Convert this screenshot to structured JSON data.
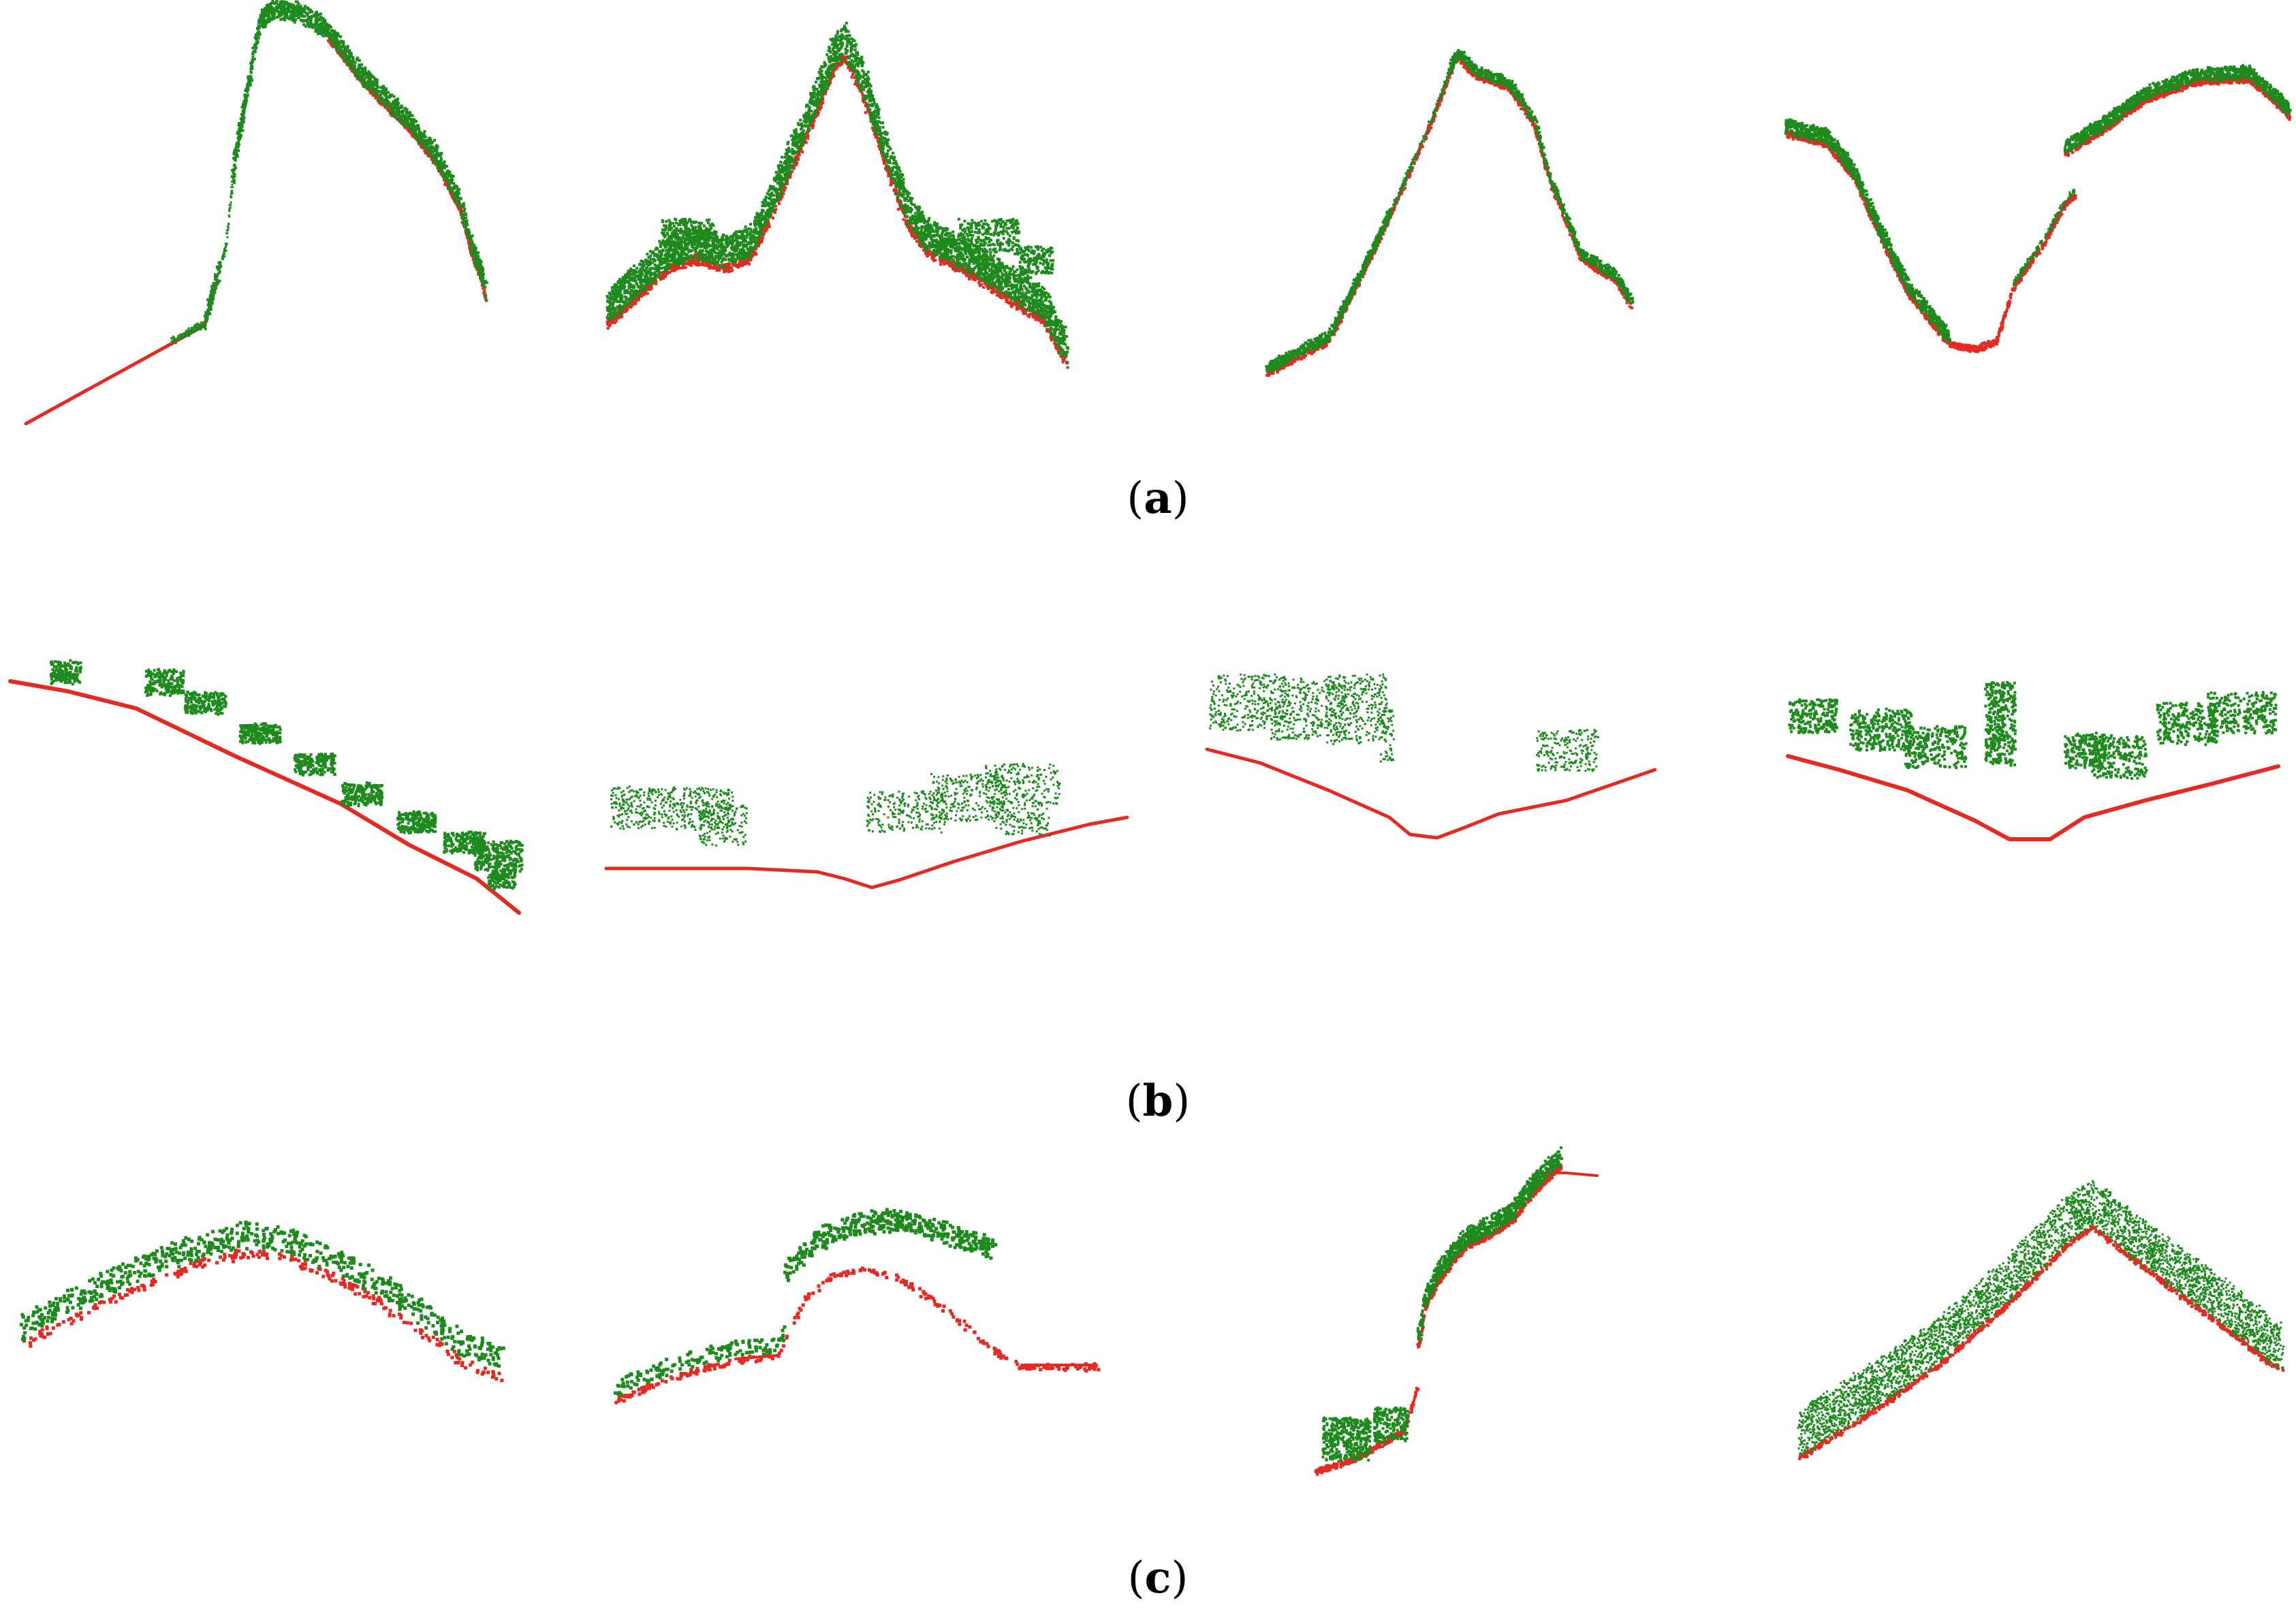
{
  "colors": {
    "ground": "#e52a24",
    "vegetation": "#1e8a1e",
    "background": "#ffffff"
  },
  "rows": [
    {
      "id": "a",
      "caption": {
        "open": "(",
        "letter": "a",
        "close": ")"
      }
    },
    {
      "id": "b",
      "caption": {
        "open": "(",
        "letter": "b",
        "close": ")"
      }
    },
    {
      "id": "c",
      "caption": {
        "open": "(",
        "letter": "c",
        "close": ")"
      }
    }
  ]
}
